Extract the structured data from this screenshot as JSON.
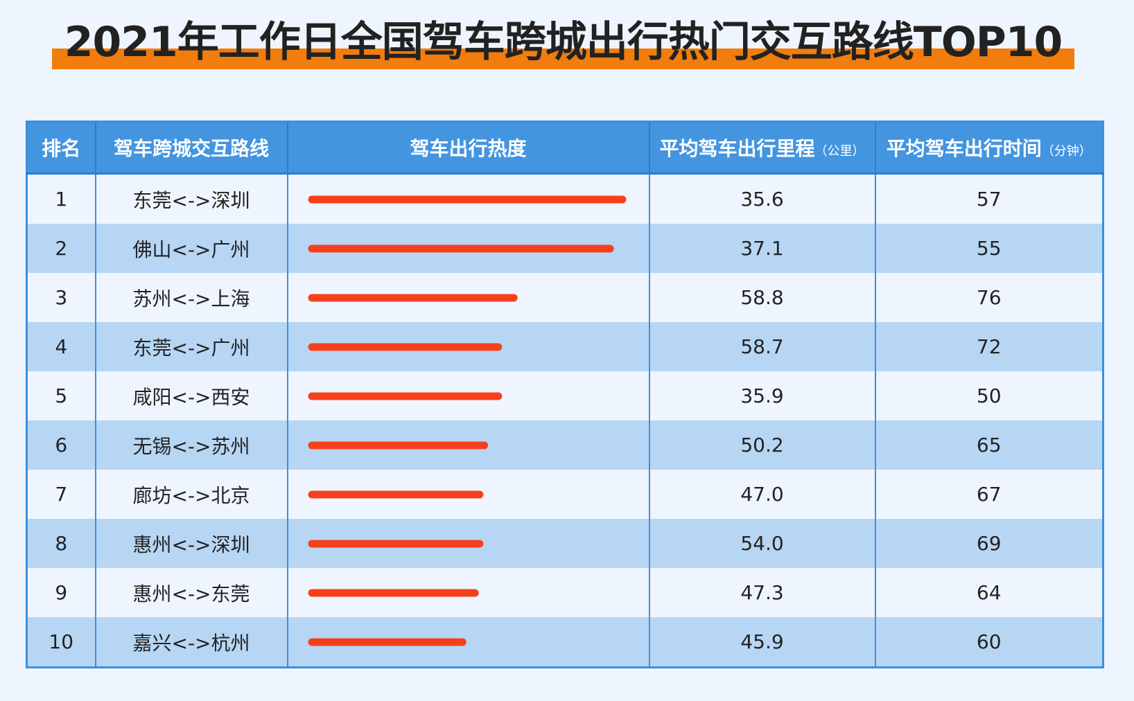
{
  "title": "2021年工作日全国驾车跨城出行热门交互路线TOP10",
  "colors": {
    "title_underline": "#f27d0c",
    "header_bg": "#4495df",
    "row_alt_bg": "#b7d6f4",
    "bar": "#f6401b"
  },
  "table": {
    "headers": {
      "rank": "排名",
      "route": "驾车跨城交互路线",
      "heat": "驾车出行热度",
      "distance": "平均驾车出行里程",
      "distance_unit": "（公里）",
      "time": "平均驾车出行时间",
      "time_unit": "（分钟）"
    }
  },
  "chart_data": {
    "type": "bar",
    "orientation": "horizontal",
    "title": "2021年工作日全国驾车跨城出行热门交互路线TOP10",
    "heat_scale_note": "no numeric axis; relative heat estimated from bar length (top = 1.0)",
    "categories": [
      "东莞<->深圳",
      "佛山<->广州",
      "苏州<->上海",
      "东莞<->广州",
      "咸阳<->西安",
      "无锡<->苏州",
      "廊坊<->北京",
      "惠州<->深圳",
      "惠州<->东莞",
      "嘉兴<->杭州"
    ],
    "ranks": [
      "1",
      "2",
      "3",
      "4",
      "5",
      "6",
      "7",
      "8",
      "9",
      "10"
    ],
    "series": [
      {
        "name": "驾车出行热度",
        "values": [
          1.0,
          0.96,
          0.65,
          0.6,
          0.6,
          0.555,
          0.54,
          0.54,
          0.525,
          0.485
        ]
      }
    ],
    "distance": [
      "35.6",
      "37.1",
      "58.8",
      "58.7",
      "35.9",
      "50.2",
      "47.0",
      "54.0",
      "47.3",
      "45.9"
    ],
    "time": [
      "57",
      "55",
      "76",
      "72",
      "50",
      "65",
      "67",
      "69",
      "64",
      "60"
    ]
  }
}
